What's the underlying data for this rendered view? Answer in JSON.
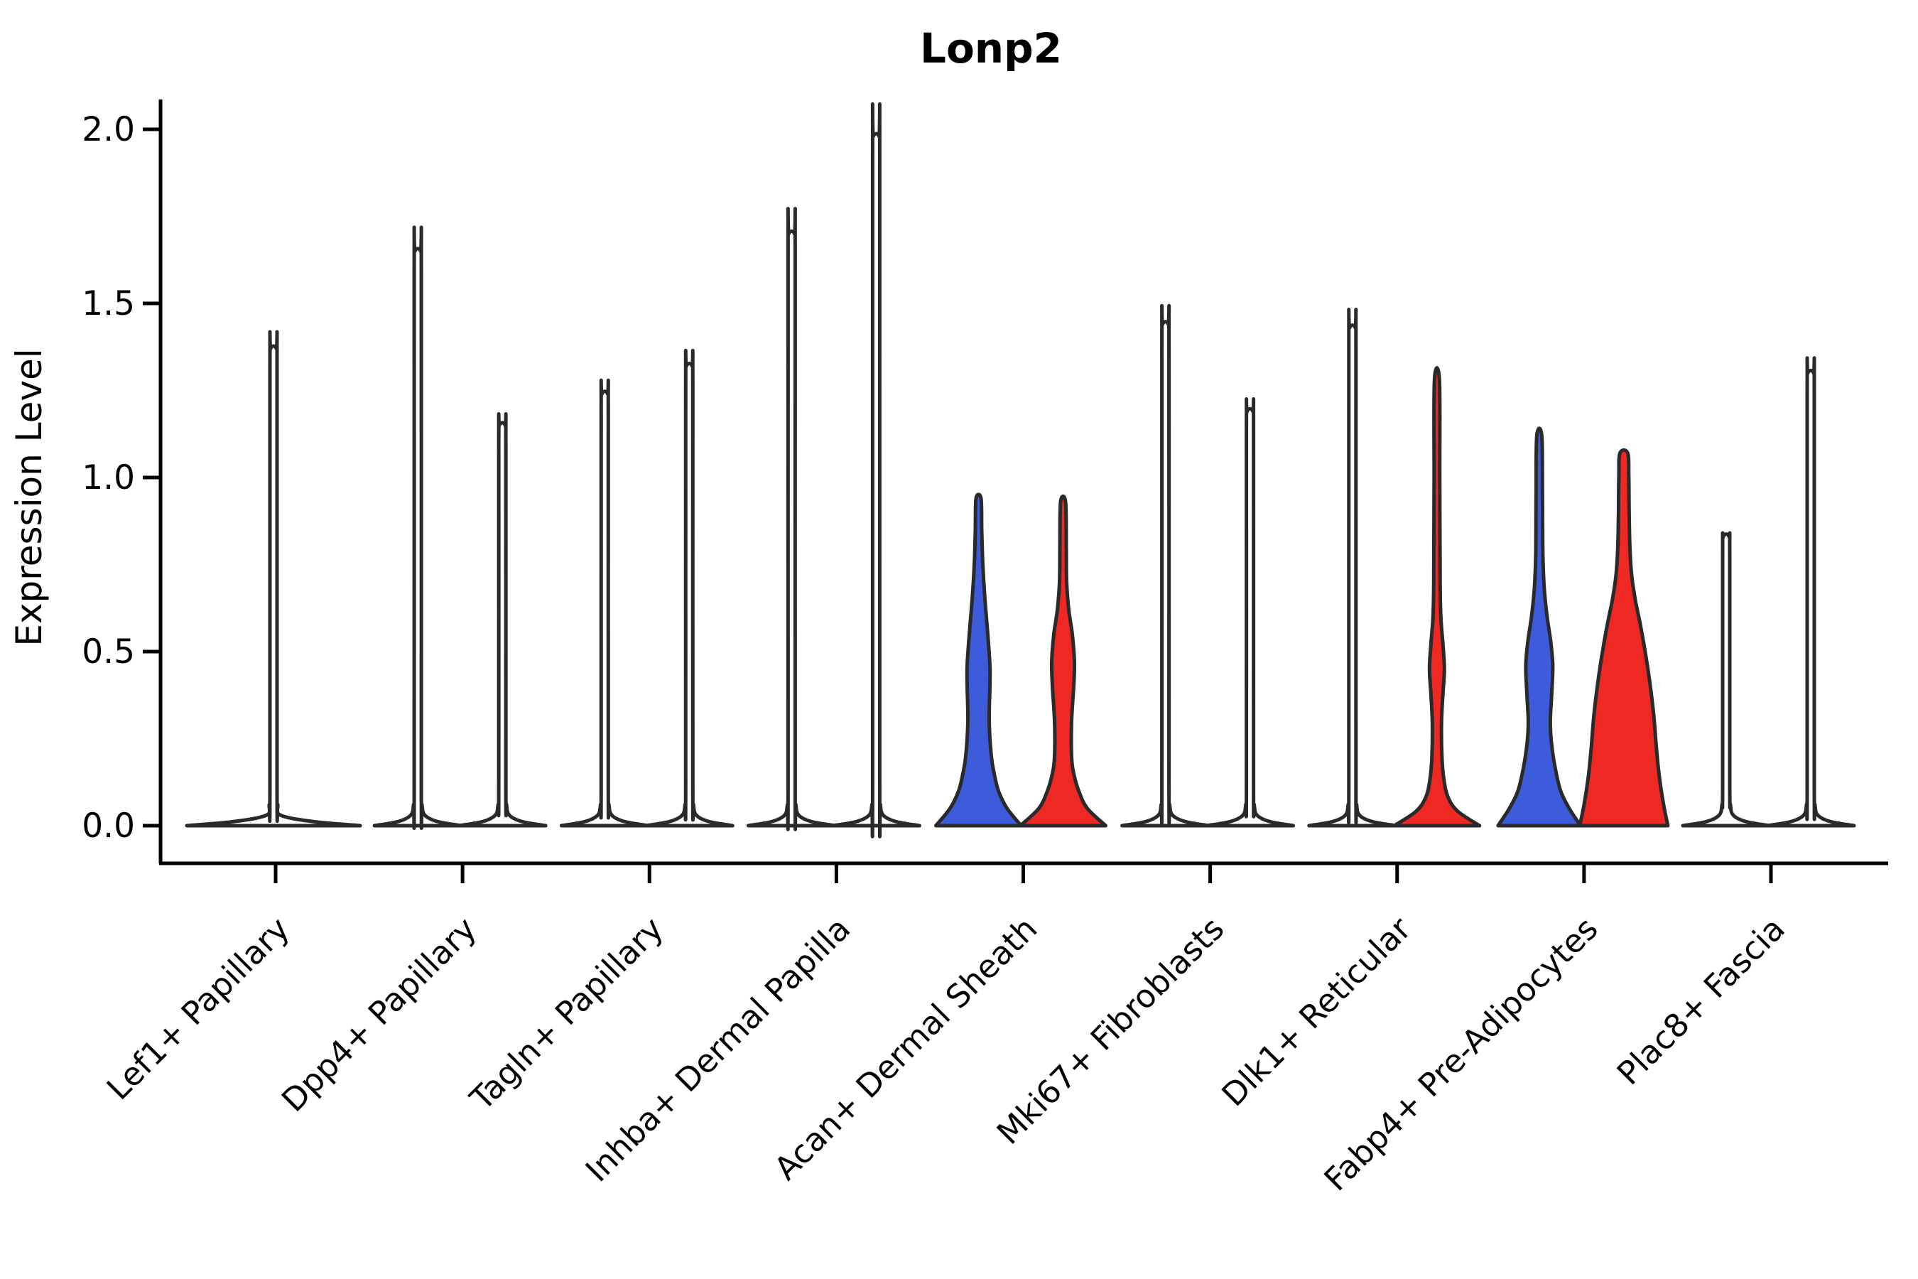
{
  "chart_data": {
    "type": "violin",
    "title": "Lonp2",
    "xlabel": "",
    "ylabel": "Expression Level",
    "ytick_labels": [
      "0.0",
      "0.5",
      "1.0",
      "1.5",
      "2.0"
    ],
    "ytick_values": [
      0.0,
      0.5,
      1.0,
      1.5,
      2.0
    ],
    "ylim": [
      0.0,
      2.05
    ],
    "grid": false,
    "legend": "none",
    "categories": [
      "Lef1+ Papillary",
      "Dpp4+ Papillary",
      "Tagln+ Papillary",
      "Inhba+ Dermal Papilla",
      "Acan+ Dermal Sheath",
      "Mki67+ Fibroblasts",
      "Dlk1+ Reticular",
      "Fabp4+ Pre-Adipocytes",
      "Plac8+ Fascia"
    ],
    "colors": {
      "blue": "#3d5cdb",
      "red": "#ee2823",
      "outline": "#2a2a2a",
      "axis": "#000000"
    },
    "violins": [
      {
        "category_index": 0,
        "category": "Lef1+ Papillary",
        "side": "center",
        "peak": 1.37,
        "fill": null,
        "shape": "spike"
      },
      {
        "category_index": 1,
        "category": "Dpp4+ Papillary",
        "side": "left",
        "peak": 1.65,
        "fill": null,
        "shape": "spike"
      },
      {
        "category_index": 1,
        "category": "Dpp4+ Papillary",
        "side": "right",
        "peak": 1.15,
        "fill": null,
        "shape": "spike"
      },
      {
        "category_index": 2,
        "category": "Tagln+ Papillary",
        "side": "left",
        "peak": 1.24,
        "fill": null,
        "shape": "spike"
      },
      {
        "category_index": 2,
        "category": "Tagln+ Papillary",
        "side": "right",
        "peak": 1.32,
        "fill": null,
        "shape": "spike"
      },
      {
        "category_index": 3,
        "category": "Inhba+ Dermal Papilla",
        "side": "left",
        "peak": 1.7,
        "fill": null,
        "shape": "spike"
      },
      {
        "category_index": 3,
        "category": "Inhba+ Dermal Papilla",
        "side": "right",
        "peak": 1.98,
        "fill": null,
        "shape": "spike"
      },
      {
        "category_index": 4,
        "category": "Acan+ Dermal Sheath",
        "side": "left",
        "peak": 0.94,
        "fill": "blue",
        "shape": "kde",
        "profile": [
          [
            0,
            60
          ],
          [
            0.05,
            40
          ],
          [
            0.1,
            28
          ],
          [
            0.15,
            22
          ],
          [
            0.2,
            18
          ],
          [
            0.3,
            15
          ],
          [
            0.4,
            16
          ],
          [
            0.46,
            16
          ],
          [
            0.55,
            13
          ],
          [
            0.65,
            9
          ],
          [
            0.75,
            6
          ],
          [
            0.85,
            4.5
          ],
          [
            0.94,
            3.5
          ]
        ]
      },
      {
        "category_index": 4,
        "category": "Acan+ Dermal Sheath",
        "side": "right",
        "peak": 0.93,
        "fill": "red",
        "shape": "kde",
        "profile": [
          [
            0,
            60
          ],
          [
            0.05,
            34
          ],
          [
            0.1,
            22
          ],
          [
            0.15,
            15
          ],
          [
            0.2,
            12
          ],
          [
            0.3,
            12
          ],
          [
            0.4,
            15
          ],
          [
            0.47,
            16
          ],
          [
            0.55,
            13
          ],
          [
            0.62,
            8
          ],
          [
            0.7,
            5
          ],
          [
            0.8,
            4.5
          ],
          [
            0.93,
            3.5
          ]
        ]
      },
      {
        "category_index": 5,
        "category": "Mki67+ Fibroblasts",
        "side": "left",
        "peak": 1.44,
        "fill": null,
        "shape": "spike"
      },
      {
        "category_index": 5,
        "category": "Mki67+ Fibroblasts",
        "side": "right",
        "peak": 1.19,
        "fill": null,
        "shape": "spike"
      },
      {
        "category_index": 6,
        "category": "Dlk1+ Reticular",
        "side": "left",
        "peak": 1.43,
        "fill": null,
        "shape": "spike"
      },
      {
        "category_index": 6,
        "category": "Dlk1+ Reticular",
        "side": "right",
        "peak": 1.28,
        "fill": "red",
        "shape": "kde",
        "profile": [
          [
            0,
            60
          ],
          [
            0.04,
            30
          ],
          [
            0.08,
            16
          ],
          [
            0.13,
            10
          ],
          [
            0.2,
            7
          ],
          [
            0.3,
            6.5
          ],
          [
            0.38,
            8.5
          ],
          [
            0.45,
            10.5
          ],
          [
            0.52,
            8.5
          ],
          [
            0.6,
            5.5
          ],
          [
            0.7,
            4.5
          ],
          [
            1.0,
            4
          ],
          [
            1.28,
            3.5
          ]
        ]
      },
      {
        "category_index": 7,
        "category": "Fabp4+ Pre-Adipocytes",
        "side": "left",
        "peak": 1.12,
        "fill": "blue",
        "shape": "kde",
        "profile": [
          [
            0,
            58
          ],
          [
            0.05,
            42
          ],
          [
            0.1,
            30
          ],
          [
            0.17,
            22
          ],
          [
            0.24,
            17
          ],
          [
            0.3,
            15.5
          ],
          [
            0.38,
            17.5
          ],
          [
            0.46,
            19
          ],
          [
            0.53,
            16
          ],
          [
            0.6,
            11
          ],
          [
            0.68,
            7
          ],
          [
            0.78,
            5
          ],
          [
            0.95,
            4.5
          ],
          [
            1.12,
            3.5
          ]
        ]
      },
      {
        "category_index": 7,
        "category": "Fabp4+ Pre-Adipocytes",
        "side": "right",
        "peak": 1.07,
        "fill": "red",
        "shape": "kde",
        "profile": [
          [
            0,
            62
          ],
          [
            0.06,
            56
          ],
          [
            0.14,
            50
          ],
          [
            0.22,
            46
          ],
          [
            0.32,
            42
          ],
          [
            0.42,
            36
          ],
          [
            0.5,
            30
          ],
          [
            0.58,
            23
          ],
          [
            0.65,
            16
          ],
          [
            0.72,
            11
          ],
          [
            0.8,
            8.5
          ],
          [
            0.9,
            7.5
          ],
          [
            1.0,
            7
          ],
          [
            1.07,
            5.5
          ]
        ]
      },
      {
        "category_index": 8,
        "category": "Plac8+ Fascia",
        "side": "left",
        "peak": 0.83,
        "fill": null,
        "shape": "spike"
      },
      {
        "category_index": 8,
        "category": "Plac8+ Fascia",
        "side": "right",
        "peak": 1.3,
        "fill": null,
        "shape": "spike"
      }
    ]
  }
}
